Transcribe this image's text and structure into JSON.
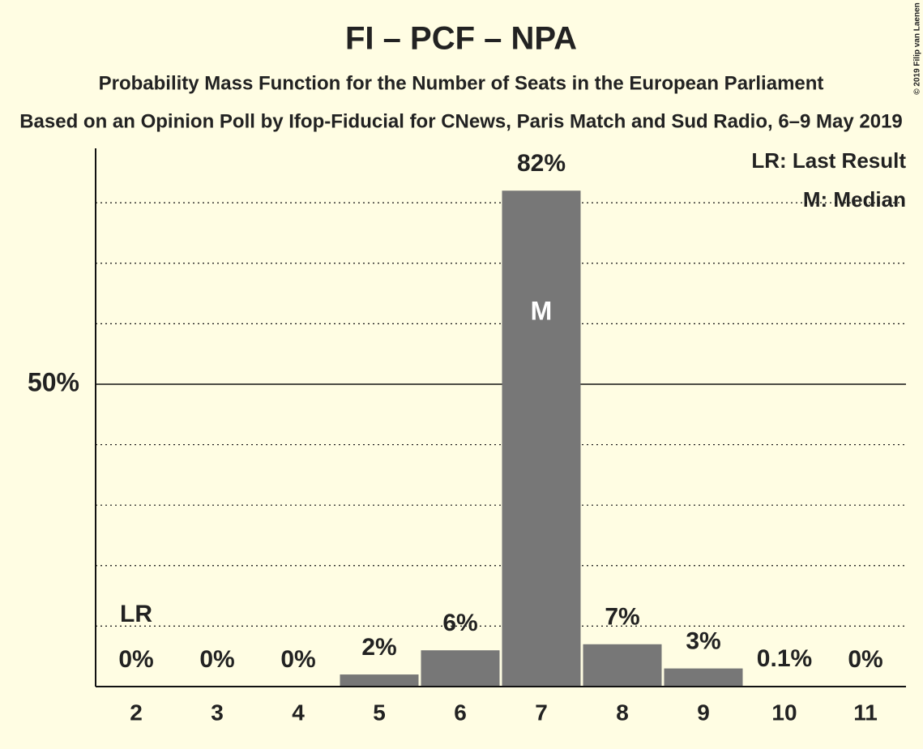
{
  "chart_data": {
    "type": "bar",
    "title": "FI – PCF – NPA",
    "subtitle": "Probability Mass Function for the Number of Seats in the European Parliament",
    "subtitle2": "Based on an Opinion Poll by Ifop-Fiducial for CNews, Paris Match and Sud Radio, 6–9 May 2019",
    "copyright": "© 2019 Filip van Laenen",
    "categories": [
      "2",
      "3",
      "4",
      "5",
      "6",
      "7",
      "8",
      "9",
      "10",
      "11"
    ],
    "values": [
      0,
      0,
      0,
      2,
      6,
      82,
      7,
      3,
      0.1,
      0
    ],
    "value_labels": [
      "0%",
      "0%",
      "0%",
      "2%",
      "6%",
      "82%",
      "7%",
      "3%",
      "0.1%",
      "0%"
    ],
    "color": "#777777",
    "ylim": [
      0,
      89
    ],
    "yticks": [
      {
        "value": 50,
        "label": "50%"
      }
    ],
    "gridlines": [
      10,
      20,
      30,
      40,
      50,
      60,
      70,
      80
    ],
    "last_result": {
      "label": "LR",
      "category": "2"
    },
    "median": {
      "label": "M",
      "category": "7"
    },
    "legend": [
      "LR: Last Result",
      "M: Median"
    ]
  }
}
